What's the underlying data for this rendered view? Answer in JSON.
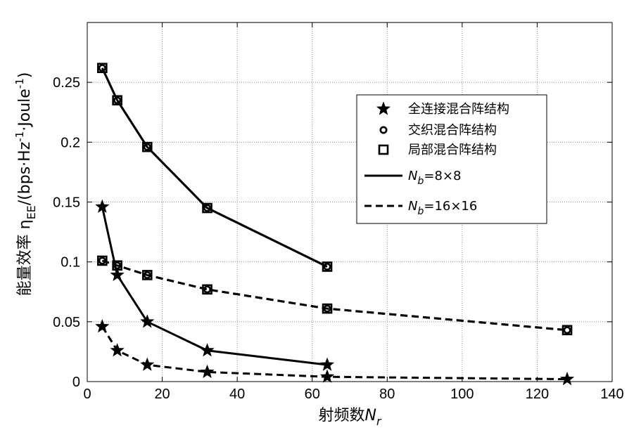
{
  "chart_data": {
    "type": "line",
    "xlabel": "射频数N_r",
    "xlabel_main": "射频数",
    "xlabel_sym": "N",
    "xlabel_sub": "r",
    "ylabel": "能量效率 η_EE/(bps·Hz⁻¹·Joule⁻¹)",
    "ylabel_main": "能量效率 η",
    "ylabel_sub": "EE",
    "ylabel_unit_a": "/(bps·Hz",
    "ylabel_sup1": "-1",
    "ylabel_unit_b": "·Joule",
    "ylabel_sup2": "-1",
    "ylabel_unit_c": ")",
    "xlim": [
      0,
      140
    ],
    "ylim": [
      0,
      0.3
    ],
    "xticks": [
      0,
      20,
      40,
      60,
      80,
      100,
      120,
      140
    ],
    "yticks": [
      0,
      0.05,
      0.1,
      0.15,
      0.2,
      0.25
    ],
    "xtick_labels": [
      "0",
      "20",
      "40",
      "60",
      "80",
      "100",
      "120",
      "140"
    ],
    "ytick_labels": [
      "0",
      "0.05",
      "0.1",
      "0.15",
      "0.2",
      "0.25"
    ],
    "grid": true,
    "legend_position": "right",
    "legend_markers": [
      "全连接混合阵结构",
      "交织混合阵结构",
      "局部混合阵结构"
    ],
    "legend_lines": [
      {
        "sym": "N",
        "sub": "b",
        "text": "=8×8",
        "style": "solid"
      },
      {
        "sym": "N",
        "sub": "b",
        "text": "=16×16",
        "style": "dashed"
      }
    ],
    "series": [
      {
        "name": "全连接混合阵结构, N_b=8×8",
        "marker": "star",
        "line": "solid",
        "x": [
          4,
          8,
          16,
          32,
          64
        ],
        "y": [
          0.146,
          0.089,
          0.05,
          0.026,
          0.014
        ]
      },
      {
        "name": "交织混合阵结构, N_b=8×8",
        "marker": "circle",
        "line": "solid",
        "x": [
          4,
          8,
          16,
          32,
          64
        ],
        "y": [
          0.262,
          0.235,
          0.196,
          0.145,
          0.096
        ]
      },
      {
        "name": "局部混合阵结构, N_b=8×8",
        "marker": "square",
        "line": "solid",
        "x": [
          4,
          8,
          16,
          32,
          64
        ],
        "y": [
          0.262,
          0.235,
          0.196,
          0.145,
          0.096
        ]
      },
      {
        "name": "全连接混合阵结构, N_b=16×16",
        "marker": "star",
        "line": "dashed",
        "x": [
          4,
          8,
          16,
          32,
          64,
          128
        ],
        "y": [
          0.046,
          0.026,
          0.014,
          0.008,
          0.004,
          0.002
        ]
      },
      {
        "name": "交织混合阵结构, N_b=16×16",
        "marker": "circle",
        "line": "dashed",
        "x": [
          4,
          8,
          16,
          32,
          64,
          128
        ],
        "y": [
          0.101,
          0.097,
          0.089,
          0.077,
          0.061,
          0.043
        ]
      },
      {
        "name": "局部混合阵结构, N_b=16×16",
        "marker": "square",
        "line": "dashed",
        "x": [
          4,
          8,
          16,
          32,
          64,
          128
        ],
        "y": [
          0.101,
          0.097,
          0.089,
          0.077,
          0.061,
          0.043
        ]
      }
    ]
  }
}
